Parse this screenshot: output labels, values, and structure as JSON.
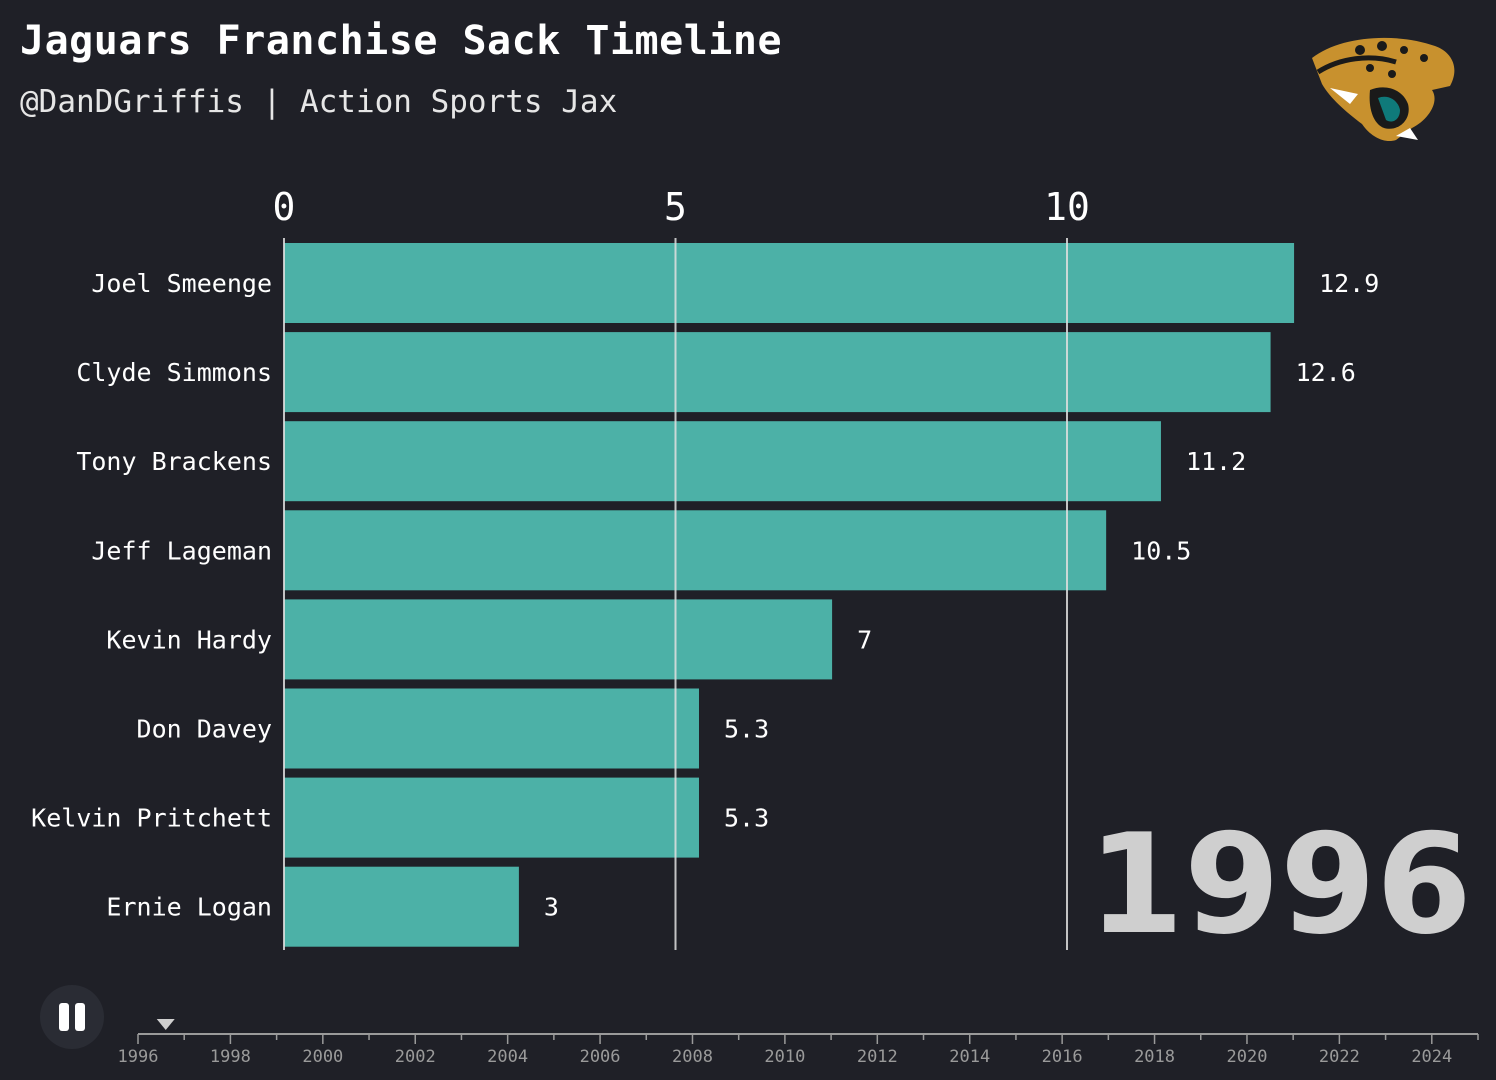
{
  "header": {
    "title": "Jaguars Franchise Sack Timeline",
    "subtitle": "@DanDGriffis | Action Sports Jax"
  },
  "logo": {
    "icon": "jaguar-head-logo-icon"
  },
  "colors": {
    "background": "#1f2027",
    "bar": "#4cb1a7",
    "grid": "#e0e0e0",
    "year_text": "#cfcfcf",
    "timeline": "#9a9a9a"
  },
  "chart_data": {
    "type": "bar",
    "orientation": "horizontal",
    "title": "Jaguars Franchise Sack Timeline",
    "subtitle": "@DanDGriffis | Action Sports Jax",
    "current_year": "1996",
    "categories": [
      "Joel Smeenge",
      "Clyde Simmons",
      "Tony Brackens",
      "Jeff Lageman",
      "Kevin Hardy",
      "Don Davey",
      "Kelvin Pritchett",
      "Ernie Logan"
    ],
    "values": [
      12.9,
      12.6,
      11.2,
      10.5,
      7,
      5.3,
      5.3,
      3
    ],
    "value_labels": [
      "12.9",
      "12.6",
      "11.2",
      "10.5",
      "7",
      "5.3",
      "5.3",
      "3"
    ],
    "x_ticks": [
      0,
      5,
      10
    ],
    "xlim": [
      0,
      16
    ],
    "grid": true,
    "xlabel": "",
    "ylabel": ""
  },
  "timeline": {
    "years": [
      "1996",
      "1998",
      "2000",
      "2002",
      "2004",
      "2006",
      "2008",
      "2010",
      "2012",
      "2014",
      "2016",
      "2018",
      "2020",
      "2022",
      "2024"
    ],
    "range": [
      1996,
      2025
    ],
    "current": 1996.6
  },
  "controls": {
    "pause_icon": "pause-icon"
  }
}
